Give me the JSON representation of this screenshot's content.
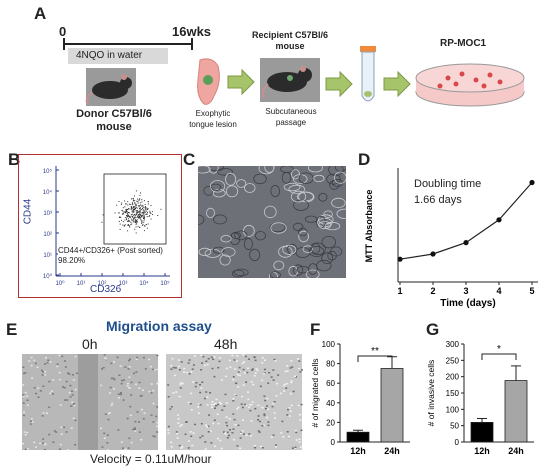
{
  "panels": {
    "a": "A",
    "b": "B",
    "c": "C",
    "d": "D",
    "e": "E",
    "f": "F",
    "g": "G"
  },
  "panel_a": {
    "timeline_start": "0",
    "timeline_end": "16wks",
    "treatment": "4NQO in water",
    "donor_line1": "Donor C57Bl/6",
    "donor_line2": "mouse",
    "lesion_line1": "Exophytic",
    "lesion_line2": "tongue lesion",
    "recipient_line1": "Recipient C57Bl/6",
    "recipient_line2": "mouse",
    "passage_line1": "Subcutaneous",
    "passage_line2": "passage",
    "cell_line": "RP-MOC1"
  },
  "panel_b": {
    "y_label": "CD44",
    "x_label": "CD326",
    "gate_label": "CD44+/CD326+ (Post sorted)",
    "gate_percent": "98.20%",
    "y_ticks": [
      "10⁵",
      "10⁴",
      "10³",
      "10²",
      "10¹",
      "10⁰"
    ],
    "x_ticks": [
      "10⁰",
      "10¹",
      "10²",
      "10³",
      "10⁴",
      "10⁵"
    ]
  },
  "panel_d": {
    "annotation_line1": "Doubling time",
    "annotation_line2": "1.66 days"
  },
  "panel_e": {
    "title": "Migration assay",
    "label_0h": "0h",
    "label_48h": "48h",
    "velocity": "Velocity = 0.11uM/hour"
  },
  "panel_f": {
    "significance": "**"
  },
  "panel_g": {
    "significance": "*"
  },
  "colors": {
    "green_arrow": "#a6c46a",
    "migration_title": "#1f4e8c",
    "axis_blue": "#2a3a8c",
    "panel_b_border": "#b03030",
    "bar_black": "#000000",
    "bar_gray": "#a6a6a6"
  },
  "chart_data": [
    {
      "type": "line",
      "panel": "D",
      "x": [
        1,
        2,
        3,
        4,
        5
      ],
      "y": [
        0.11,
        0.135,
        0.19,
        0.3,
        0.48
      ],
      "xlabel": "Time  (days)",
      "ylabel": "MTT Absorbance",
      "xticks": [
        "1",
        "2",
        "3",
        "4",
        "5"
      ],
      "xlim": [
        1,
        5
      ],
      "ylim": [
        0,
        0.55
      ]
    },
    {
      "type": "bar",
      "panel": "F",
      "categories": [
        "12h",
        "24h"
      ],
      "values": [
        10,
        75
      ],
      "errors": [
        2,
        12
      ],
      "ylabel": "# of migrated cells",
      "yticks": [
        "0",
        "20",
        "40",
        "60",
        "80",
        "100"
      ],
      "ylim": [
        0,
        100
      ]
    },
    {
      "type": "bar",
      "panel": "G",
      "categories": [
        "12h",
        "24h"
      ],
      "values": [
        60,
        188
      ],
      "errors": [
        12,
        45
      ],
      "ylabel": "# of invasive cells",
      "yticks": [
        "0",
        "50",
        "100",
        "150",
        "200",
        "250",
        "300"
      ],
      "ylim": [
        0,
        300
      ]
    }
  ]
}
